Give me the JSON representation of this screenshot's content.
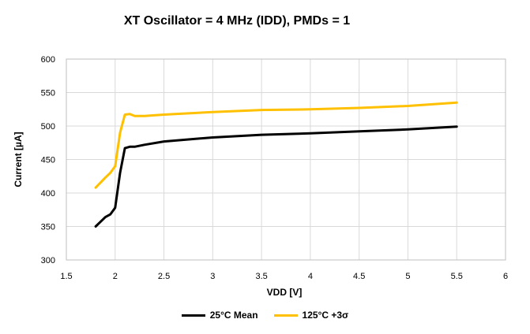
{
  "chart_data": {
    "type": "line",
    "title": "XT Oscillator = 4 MHz (IDD), PMDs = 1",
    "xlabel": "VDD [V]",
    "ylabel": "Current [µA]",
    "xlim": [
      1.5,
      6
    ],
    "ylim": [
      300,
      600
    ],
    "xticks": [
      1.5,
      2,
      2.5,
      3,
      3.5,
      4,
      4.5,
      5,
      5.5,
      6
    ],
    "yticks": [
      300,
      350,
      400,
      450,
      500,
      550,
      600
    ],
    "grid": true,
    "legend_position": "bottom",
    "series": [
      {
        "name": "25°C Mean",
        "color": "#000000",
        "x": [
          1.8,
          1.9,
          1.95,
          2.0,
          2.05,
          2.1,
          2.15,
          2.2,
          2.3,
          2.5,
          3.0,
          3.5,
          4.0,
          4.5,
          5.0,
          5.5
        ],
        "y": [
          350,
          364,
          368,
          378,
          430,
          467,
          469,
          469,
          472,
          477,
          483,
          487,
          489,
          492,
          495,
          499
        ]
      },
      {
        "name": "125°C +3σ",
        "color": "#FFC000",
        "x": [
          1.8,
          1.9,
          1.95,
          2.0,
          2.05,
          2.1,
          2.15,
          2.2,
          2.3,
          2.5,
          3.0,
          3.5,
          4.0,
          4.5,
          5.0,
          5.5
        ],
        "y": [
          408,
          423,
          430,
          440,
          490,
          517,
          518,
          515,
          515,
          517,
          521,
          524,
          525,
          527,
          530,
          535
        ]
      }
    ]
  }
}
